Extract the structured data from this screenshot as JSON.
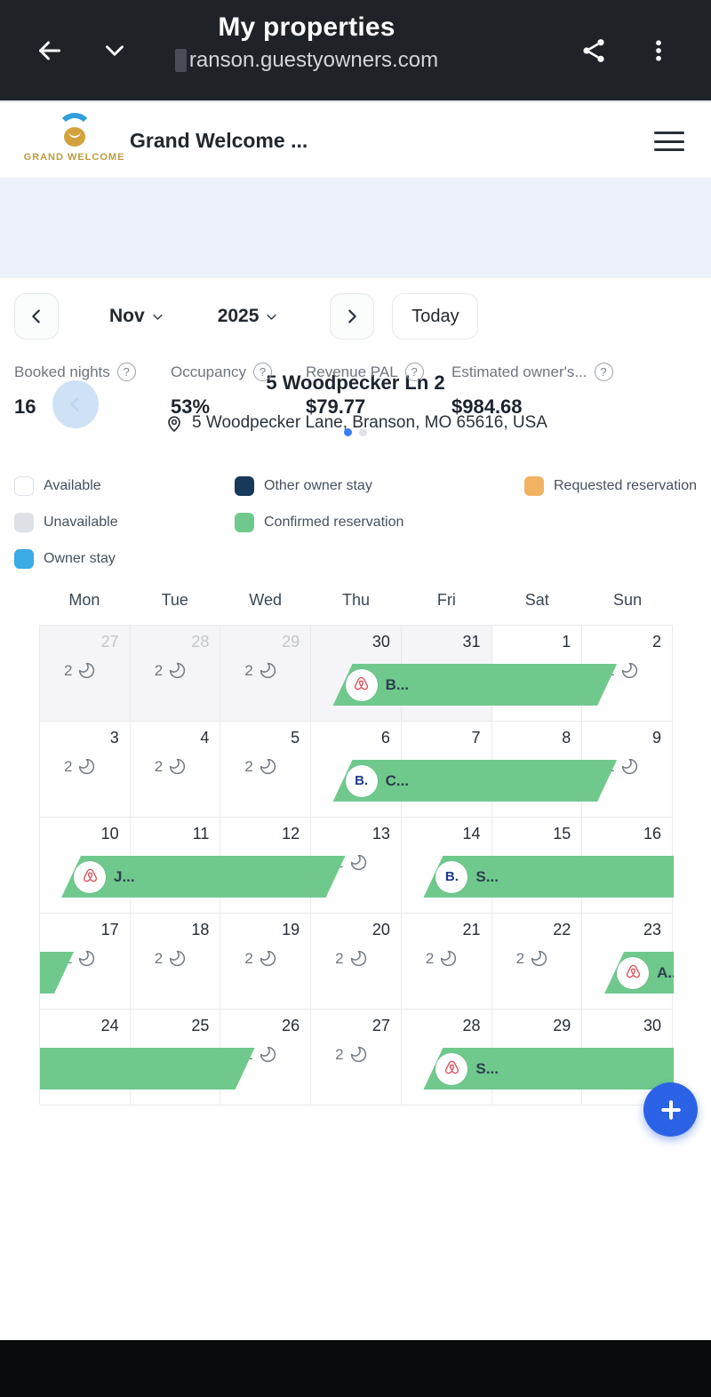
{
  "browser_bar": {
    "title": "My properties",
    "url": "ranson.guestyowners.com"
  },
  "site_header": {
    "brand_name": "Grand Welcome ...",
    "logo_caption": "GRAND WELCOME"
  },
  "property_hero": {
    "name": "5 Woodpecker Ln 2",
    "address": "5 Woodpecker Lane, Branson, MO 65616, USA"
  },
  "month_nav": {
    "month_label": "Nov",
    "year_label": "2025",
    "today_label": "Today"
  },
  "stats": {
    "items": [
      {
        "label": "Booked nights",
        "value": "16"
      },
      {
        "label": "Occupancy",
        "value": "53%"
      },
      {
        "label": "Revenue PAL",
        "value": "$79.77"
      },
      {
        "label": "Estimated owner's...",
        "value": "$984.68"
      }
    ],
    "pages": 2,
    "active_page": 0
  },
  "legend": {
    "items": [
      {
        "label": "Available",
        "color": "#ffffff",
        "border": "#dfe3e8"
      },
      {
        "label": "Unavailable",
        "color": "#dde1e7",
        "border": "#dde1e7"
      },
      {
        "label": "Owner stay",
        "color": "#3aabe4",
        "border": "#3aabe4"
      },
      {
        "label": "Other owner stay",
        "color": "#17395a",
        "border": "#17395a"
      },
      {
        "label": "Confirmed reservation",
        "color": "#70c98c",
        "border": "#70c98c"
      },
      {
        "label": "Requested reservation",
        "color": "#f2b263",
        "border": "#f2b263"
      }
    ]
  },
  "calendar": {
    "day_headers": [
      "Mon",
      "Tue",
      "Wed",
      "Thu",
      "Fri",
      "Sat",
      "Sun"
    ],
    "min_nights_label": "2",
    "weeks": [
      [
        {
          "day": "27",
          "out": true,
          "muted": true,
          "moon": true
        },
        {
          "day": "28",
          "out": true,
          "muted": true,
          "moon": true
        },
        {
          "day": "29",
          "out": true,
          "muted": true,
          "moon": true
        },
        {
          "day": "30",
          "out": true
        },
        {
          "day": "31",
          "out": true
        },
        {
          "day": "1"
        },
        {
          "day": "2",
          "moon": true
        }
      ],
      [
        {
          "day": "3",
          "moon": true
        },
        {
          "day": "4",
          "moon": true
        },
        {
          "day": "5",
          "moon": true
        },
        {
          "day": "6"
        },
        {
          "day": "7"
        },
        {
          "day": "8"
        },
        {
          "day": "9",
          "moon": true
        }
      ],
      [
        {
          "day": "10"
        },
        {
          "day": "11"
        },
        {
          "day": "12"
        },
        {
          "day": "13",
          "moon": true
        },
        {
          "day": "14"
        },
        {
          "day": "15"
        },
        {
          "day": "16"
        }
      ],
      [
        {
          "day": "17",
          "moon": true
        },
        {
          "day": "18",
          "moon": true
        },
        {
          "day": "19",
          "moon": true
        },
        {
          "day": "20",
          "moon": true
        },
        {
          "day": "21",
          "moon": true
        },
        {
          "day": "22",
          "moon": true
        },
        {
          "day": "23"
        }
      ],
      [
        {
          "day": "24"
        },
        {
          "day": "25"
        },
        {
          "day": "26",
          "moon": true
        },
        {
          "day": "27",
          "moon": true
        },
        {
          "day": "28"
        },
        {
          "day": "29"
        },
        {
          "day": "30"
        }
      ]
    ],
    "reservations": [
      {
        "week": 0,
        "checkin_col": 3,
        "checkout_col": 6,
        "starts_in_week": true,
        "ends_in_week": true,
        "platform": "airbnb",
        "guest": "B..."
      },
      {
        "week": 1,
        "checkin_col": 3,
        "checkout_col": 6,
        "starts_in_week": true,
        "ends_in_week": true,
        "platform": "booking",
        "guest": "C..."
      },
      {
        "week": 2,
        "checkin_col": 0,
        "checkout_col": 3,
        "starts_in_week": true,
        "ends_in_week": true,
        "platform": "airbnb",
        "guest": "J..."
      },
      {
        "week": 2,
        "checkin_col": 4,
        "checkout_col": null,
        "starts_in_week": true,
        "ends_in_week": false,
        "platform": "booking",
        "guest": "S..."
      },
      {
        "week": 3,
        "checkin_col": null,
        "checkout_col": 0,
        "starts_in_week": false,
        "ends_in_week": true,
        "platform": null,
        "guest": ""
      },
      {
        "week": 3,
        "checkin_col": 6,
        "checkout_col": null,
        "starts_in_week": true,
        "ends_in_week": false,
        "platform": "airbnb",
        "guest": "A..."
      },
      {
        "week": 4,
        "checkin_col": null,
        "checkout_col": 2,
        "starts_in_week": false,
        "ends_in_week": true,
        "platform": null,
        "guest": ""
      },
      {
        "week": 4,
        "checkin_col": 4,
        "checkout_col": null,
        "starts_in_week": true,
        "ends_in_week": false,
        "platform": "airbnb",
        "guest": "S..."
      }
    ]
  },
  "fab": {
    "label": "+"
  },
  "colors": {
    "confirmed_green": "#70c98c",
    "fab_blue": "#2b62e6",
    "active_dot_blue": "#3b7cf5",
    "inactive_dot": "#dfe3e8",
    "browser_bar_bg": "#1f2227",
    "hero_bg": "#edf1f9"
  }
}
